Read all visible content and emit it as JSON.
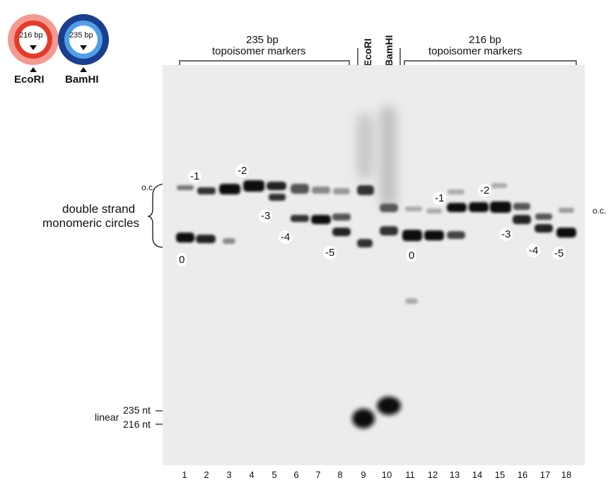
{
  "plasmid": {
    "red_label": "216 bp",
    "blue_label": "235 bp",
    "red_enzyme": "EcoRI",
    "blue_enzyme": "BamHI",
    "red_color": "#e53a2a",
    "red_light": "#f49a92",
    "blue_color": "#1a3f8f",
    "blue_light": "#4f9fe8"
  },
  "headers": {
    "left_line1": "235 bp",
    "left_line2": "topoisomer markers",
    "ecori": "EcoRI",
    "bamhi": "BamHI",
    "right_line1": "216 bp",
    "right_line2": "topoisomer markers"
  },
  "side_labels": {
    "oc_left": "o.c.",
    "oc_right": "o.c.",
    "double_line1": "double strand",
    "double_line2": "monomeric circles",
    "linear": "linear",
    "nt235": "235 nt",
    "nt216": "216 nt"
  },
  "band_labels": {
    "l_m1": "-1",
    "l_m2": "-2",
    "l_m3": "-3",
    "l_m4": "-4",
    "l_m5": "-5",
    "l_0": "0",
    "r_m1": "-1",
    "r_m2": "-2",
    "r_m3": "-3",
    "r_m4": "-4",
    "r_m5": "-5",
    "r_0": "0"
  },
  "lanes": [
    "1",
    "2",
    "3",
    "4",
    "5",
    "6",
    "7",
    "8",
    "9",
    "10",
    "11",
    "12",
    "13",
    "14",
    "15",
    "16",
    "17",
    "18"
  ]
}
